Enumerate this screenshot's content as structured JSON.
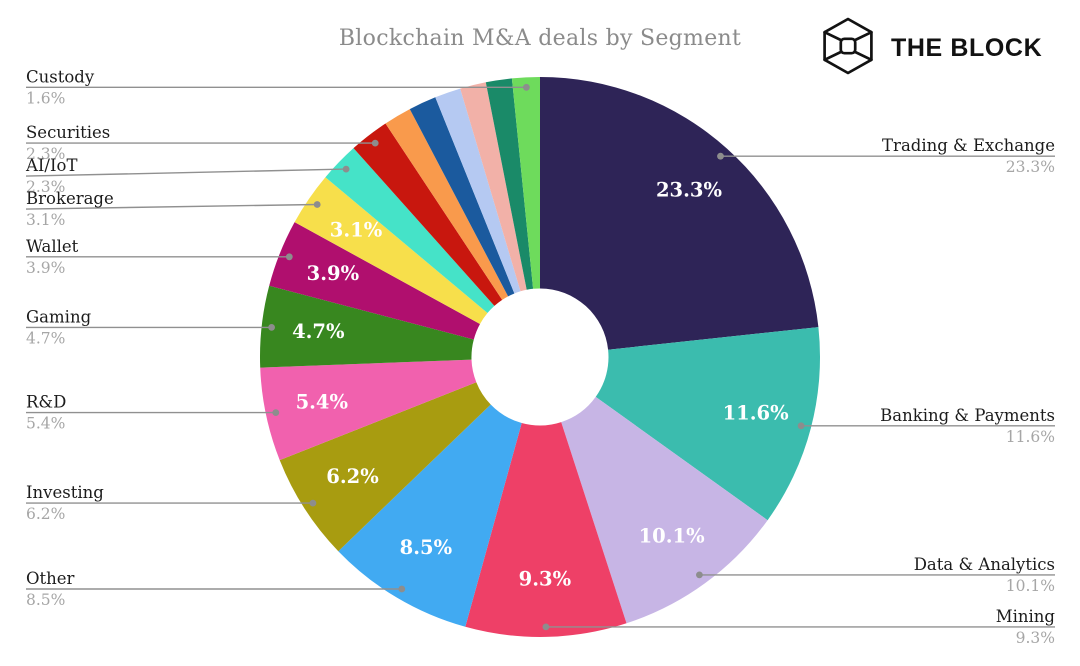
{
  "title": "Blockchain M&A deals by Segment",
  "brand": {
    "name": "THE BLOCK",
    "icon": "block-cube-logo"
  },
  "chart_data": {
    "type": "pie",
    "subtype": "donut",
    "title": "Blockchain M&A deals by Segment",
    "direction": "clockwise",
    "start_angle_deg": 0,
    "inner_radius_ratio": 0.245,
    "legend_position": "callout-labels",
    "segments": [
      {
        "label": "Trading & Exchange",
        "value": 23.3,
        "color": "#2E2457",
        "show_inner_label": true,
        "show_outer_label": true
      },
      {
        "label": "Banking & Payments",
        "value": 11.6,
        "color": "#3BBCAE",
        "show_inner_label": true,
        "show_outer_label": true
      },
      {
        "label": "Data & Analytics",
        "value": 10.1,
        "color": "#C7B5E5",
        "show_inner_label": true,
        "show_outer_label": true
      },
      {
        "label": "Mining",
        "value": 9.3,
        "color": "#EE4067",
        "show_inner_label": true,
        "show_outer_label": true
      },
      {
        "label": "Other",
        "value": 8.5,
        "color": "#41AAF2",
        "show_inner_label": true,
        "show_outer_label": true
      },
      {
        "label": "Investing",
        "value": 6.2,
        "color": "#A89C10",
        "show_inner_label": true,
        "show_outer_label": true
      },
      {
        "label": "R&D",
        "value": 5.4,
        "color": "#F161AE",
        "show_inner_label": true,
        "show_outer_label": true
      },
      {
        "label": "Gaming",
        "value": 4.7,
        "color": "#38871F",
        "show_inner_label": true,
        "show_outer_label": true
      },
      {
        "label": "Wallet",
        "value": 3.9,
        "color": "#B00F6E",
        "show_inner_label": true,
        "show_outer_label": true
      },
      {
        "label": "Brokerage",
        "value": 3.1,
        "color": "#F7DF4B",
        "show_inner_label": true,
        "show_outer_label": true
      },
      {
        "label": "AI/IoT",
        "value": 2.3,
        "color": "#45E3C8",
        "show_inner_label": false,
        "show_outer_label": true
      },
      {
        "label": "Securities",
        "value": 2.3,
        "color": "#C8170E",
        "show_inner_label": false,
        "show_outer_label": true
      },
      {
        "label": "",
        "value": 1.6,
        "color": "#F99A4C",
        "show_inner_label": false,
        "show_outer_label": false
      },
      {
        "label": "",
        "value": 1.6,
        "color": "#1B5A9E",
        "show_inner_label": false,
        "show_outer_label": false
      },
      {
        "label": "",
        "value": 1.5,
        "color": "#B5C9F2",
        "show_inner_label": false,
        "show_outer_label": false
      },
      {
        "label": "",
        "value": 1.5,
        "color": "#F2B1A8",
        "show_inner_label": false,
        "show_outer_label": false
      },
      {
        "label": "",
        "value": 1.5,
        "color": "#1A8A68",
        "show_inner_label": false,
        "show_outer_label": false
      },
      {
        "label": "Custody",
        "value": 1.6,
        "color": "#6EDB5C",
        "show_inner_label": false,
        "show_outer_label": true
      }
    ]
  }
}
